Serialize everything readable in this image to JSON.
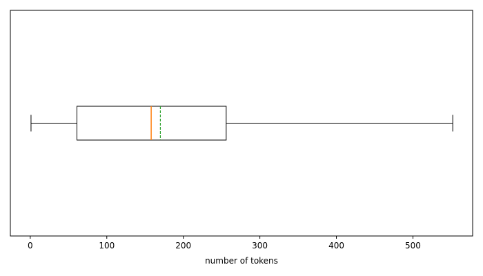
{
  "chart_data": {
    "type": "boxplot",
    "orientation": "horizontal",
    "title": "",
    "xlabel": "number of tokens",
    "ylabel": "",
    "xlim": [
      -26,
      578
    ],
    "xticks": [
      0,
      100,
      200,
      300,
      400,
      500
    ],
    "xtick_labels": [
      "0",
      "100",
      "200",
      "300",
      "400",
      "500"
    ],
    "yticks_visible": false,
    "grid": false,
    "box": {
      "whisker_low": 1,
      "q1": 61,
      "median": 158,
      "mean": 170,
      "q3": 256,
      "whisker_high": 552,
      "show_mean_line": true
    },
    "colors": {
      "box": "#000000",
      "median": "#ff7f0e",
      "mean": "#2ca02c"
    }
  }
}
